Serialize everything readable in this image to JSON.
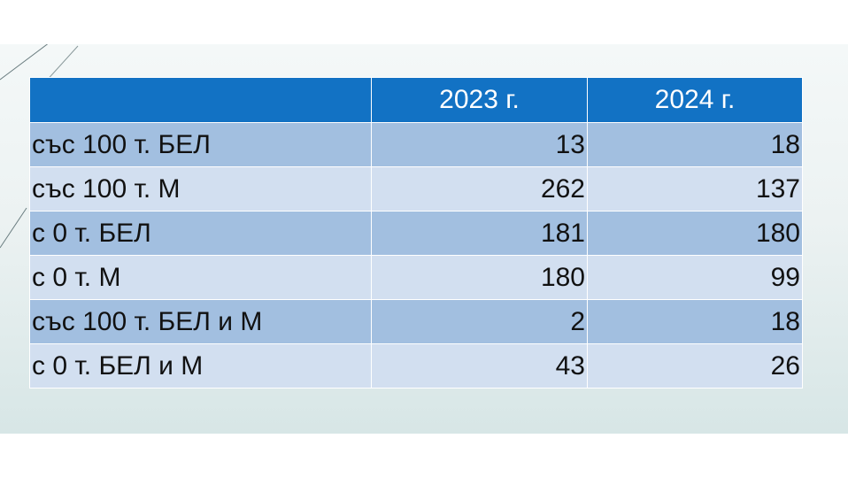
{
  "table": {
    "header": [
      "",
      "2023 г.",
      "2024 г."
    ],
    "rows": [
      {
        "label": "със 100 т. БЕЛ",
        "y2023": "13",
        "y2024": "18"
      },
      {
        "label": "със 100 т. М",
        "y2023": "262",
        "y2024": "137"
      },
      {
        "label": "с 0 т. БЕЛ",
        "y2023": "181",
        "y2024": "180"
      },
      {
        "label": "с 0 т. М",
        "y2023": "180",
        "y2024": "99"
      },
      {
        "label": "със 100 т. БЕЛ и М",
        "y2023": "2",
        "y2024": "18"
      },
      {
        "label": "с 0 т. БЕЛ и М",
        "y2023": "43",
        "y2024": "26"
      }
    ]
  },
  "colors": {
    "header_bg": "#1272c4",
    "row_odd_bg": "#a2bfe0",
    "row_even_bg": "#d2dff0"
  }
}
